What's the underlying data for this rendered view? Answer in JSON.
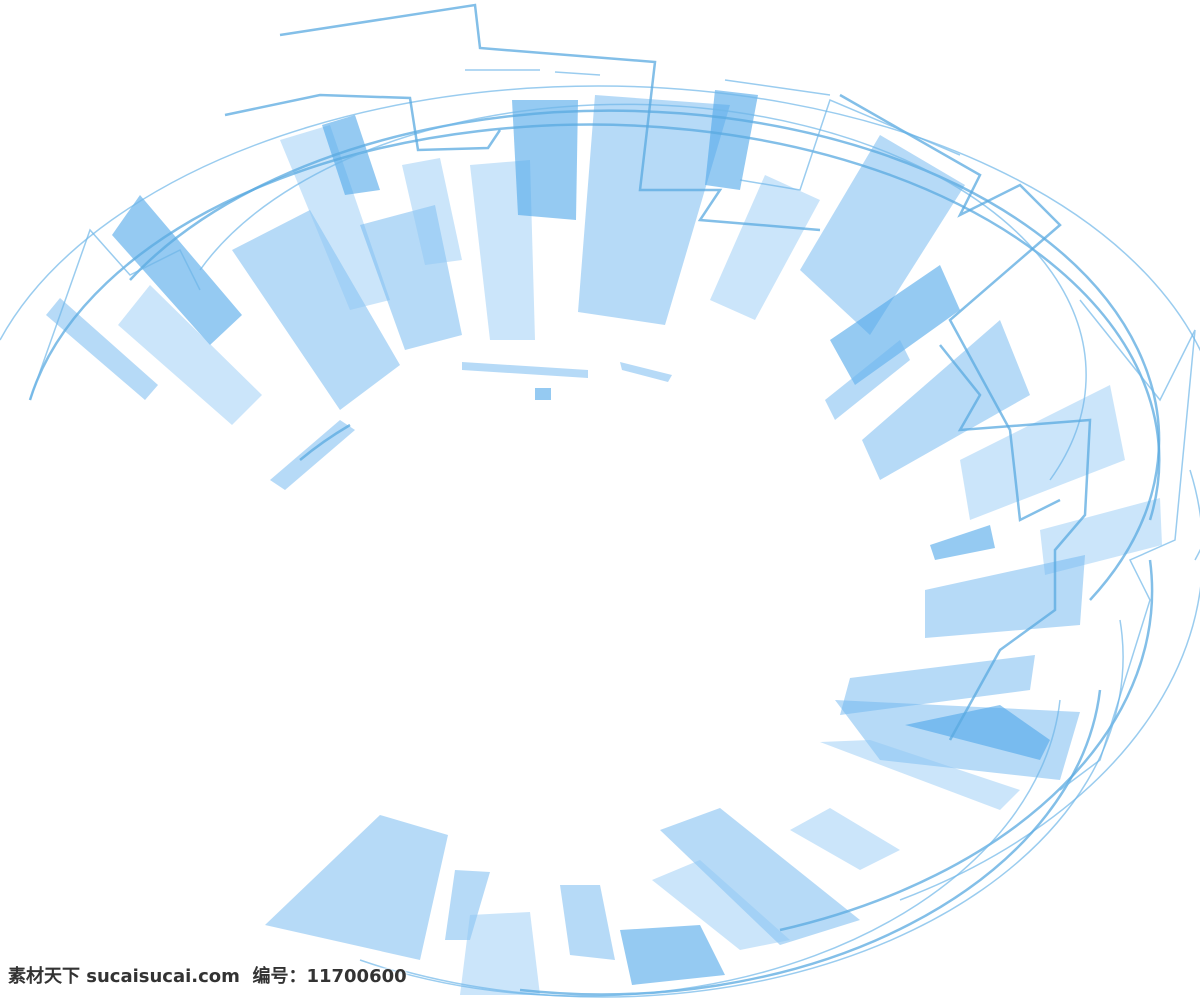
{
  "watermark": {
    "text": "素材天下 sucaisucai.com  编号：11700600"
  }
}
